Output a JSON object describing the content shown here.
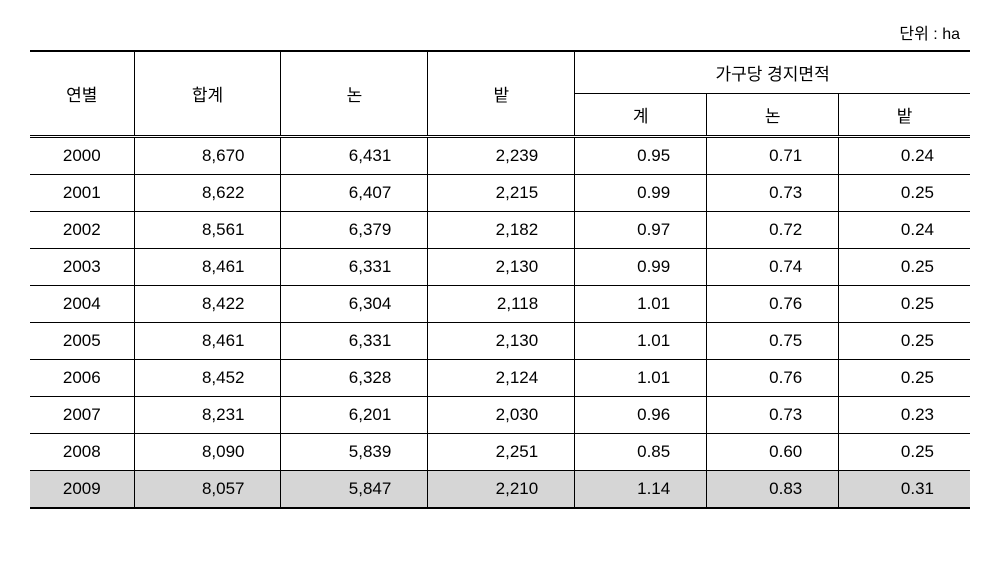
{
  "unit_label": "단위 : ha",
  "headers": {
    "year": "연별",
    "total": "합계",
    "paddy": "논",
    "field": "밭",
    "per_household": "가구당 경지면적",
    "sub_total": "계",
    "sub_paddy": "논",
    "sub_field": "밭"
  },
  "rows": [
    {
      "year": "2000",
      "total": "8,670",
      "paddy": "6,431",
      "field": "2,239",
      "ph_total": "0.95",
      "ph_paddy": "0.71",
      "ph_field": "0.24",
      "highlight": false
    },
    {
      "year": "2001",
      "total": "8,622",
      "paddy": "6,407",
      "field": "2,215",
      "ph_total": "0.99",
      "ph_paddy": "0.73",
      "ph_field": "0.25",
      "highlight": false
    },
    {
      "year": "2002",
      "total": "8,561",
      "paddy": "6,379",
      "field": "2,182",
      "ph_total": "0.97",
      "ph_paddy": "0.72",
      "ph_field": "0.24",
      "highlight": false
    },
    {
      "year": "2003",
      "total": "8,461",
      "paddy": "6,331",
      "field": "2,130",
      "ph_total": "0.99",
      "ph_paddy": "0.74",
      "ph_field": "0.25",
      "highlight": false
    },
    {
      "year": "2004",
      "total": "8,422",
      "paddy": "6,304",
      "field": "2,118",
      "ph_total": "1.01",
      "ph_paddy": "0.76",
      "ph_field": "0.25",
      "highlight": false
    },
    {
      "year": "2005",
      "total": "8,461",
      "paddy": "6,331",
      "field": "2,130",
      "ph_total": "1.01",
      "ph_paddy": "0.75",
      "ph_field": "0.25",
      "highlight": false
    },
    {
      "year": "2006",
      "total": "8,452",
      "paddy": "6,328",
      "field": "2,124",
      "ph_total": "1.01",
      "ph_paddy": "0.76",
      "ph_field": "0.25",
      "highlight": false
    },
    {
      "year": "2007",
      "total": "8,231",
      "paddy": "6,201",
      "field": "2,030",
      "ph_total": "0.96",
      "ph_paddy": "0.73",
      "ph_field": "0.23",
      "highlight": false
    },
    {
      "year": "2008",
      "total": "8,090",
      "paddy": "5,839",
      "field": "2,251",
      "ph_total": "0.85",
      "ph_paddy": "0.60",
      "ph_field": "0.25",
      "highlight": false
    },
    {
      "year": "2009",
      "total": "8,057",
      "paddy": "5,847",
      "field": "2,210",
      "ph_total": "1.14",
      "ph_paddy": "0.83",
      "ph_field": "0.31",
      "highlight": true
    }
  ],
  "styles": {
    "background": "#ffffff",
    "text_color": "#000000",
    "border_color": "#000000",
    "highlight_bg": "#d6d6d6",
    "font_size_body": 17,
    "font_size_unit": 16
  }
}
